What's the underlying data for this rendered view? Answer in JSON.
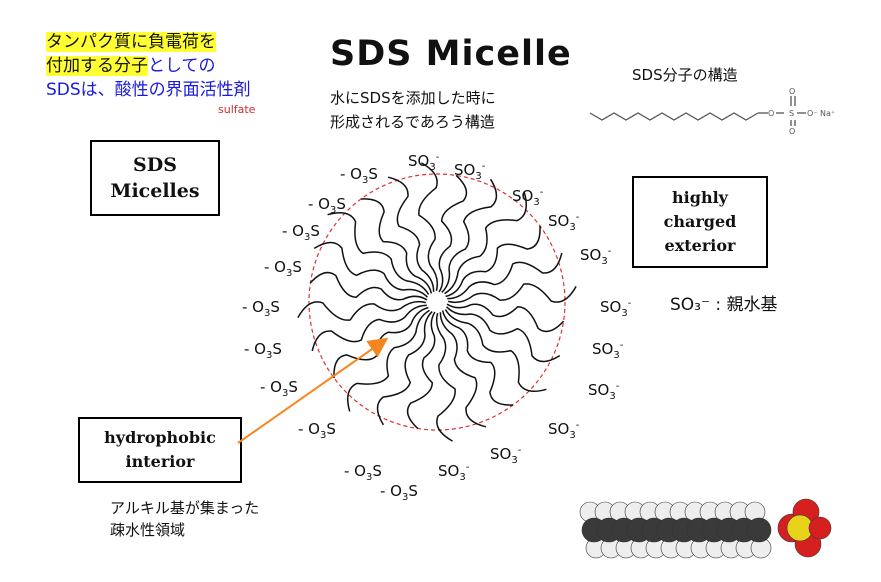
{
  "intro": {
    "line1": "タンパク質に負電荷を",
    "line2_highlight": "付加する分子",
    "line2_rest": "としての",
    "line3": "SDSは、酸性の界面活性剤",
    "sulfate_note": "sulfate"
  },
  "title": "SDS Micelle",
  "subnote": {
    "line1": "水にSDSを添加した時に",
    "line2": "形成されるであろう構造"
  },
  "molecule": {
    "title": "SDS分子の構造",
    "na_label": "Na⁺"
  },
  "boxes": {
    "micelles": "SDS Micelles",
    "exterior": "highly charged exterior",
    "interior": "hydrophobic interior"
  },
  "legend": {
    "so3_hydrophilic": "SO₃⁻ : 親水基"
  },
  "alkyl_note": {
    "line1": "アルキル基が集まった",
    "line2": "疎水性領域"
  },
  "headgroups": {
    "left_label": "- O3S",
    "right_label": "SO3-",
    "count_left": 12,
    "count_right": 13
  },
  "colors": {
    "highlight": "#ffff33",
    "blue_text": "#1a1adb",
    "sulfate_red": "#d02a2a",
    "micelle_circle": "#e03030",
    "arrow": "#f5861f",
    "sulfur": "#e8d21a",
    "oxygen": "#d62020"
  }
}
